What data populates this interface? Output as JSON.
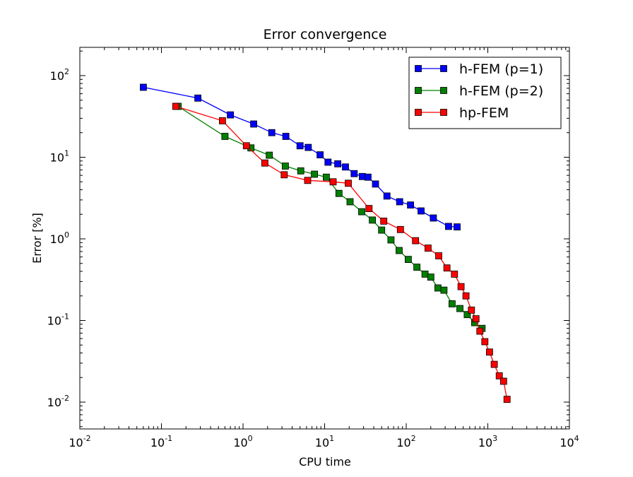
{
  "chart_data": {
    "type": "line",
    "title": "Error convergence",
    "xlabel": "CPU time",
    "ylabel": "Error [%]",
    "xscale": "log",
    "yscale": "log",
    "xlim": [
      0.01,
      10000
    ],
    "ylim": [
      0.005,
      200
    ],
    "x_ticks": [
      {
        "base": "10",
        "exp": "-2"
      },
      {
        "base": "10",
        "exp": "-1"
      },
      {
        "base": "10",
        "exp": "0"
      },
      {
        "base": "10",
        "exp": "1"
      },
      {
        "base": "10",
        "exp": "2"
      },
      {
        "base": "10",
        "exp": "3"
      },
      {
        "base": "10",
        "exp": "4"
      }
    ],
    "y_ticks": [
      {
        "base": "10",
        "exp": "-2"
      },
      {
        "base": "10",
        "exp": "-1"
      },
      {
        "base": "10",
        "exp": "0"
      },
      {
        "base": "10",
        "exp": "1"
      },
      {
        "base": "10",
        "exp": "2"
      }
    ],
    "legend_position": "top-right",
    "grid": false,
    "series": [
      {
        "name": "h-FEM (p=1)",
        "color": "#0000ff",
        "marker": "square",
        "x": [
          0.06,
          0.28,
          0.7,
          1.35,
          2.25,
          3.35,
          5.0,
          6.3,
          8.8,
          11.0,
          14.5,
          18.0,
          23.0,
          29.0,
          34.0,
          42.0,
          58.0,
          83.0,
          113.0,
          152.0,
          215.0,
          330.0,
          420.0
        ],
        "y": [
          72.0,
          53.0,
          33.0,
          25.5,
          20.0,
          18.0,
          13.8,
          13.2,
          10.7,
          8.7,
          8.3,
          7.6,
          6.3,
          5.8,
          5.7,
          4.7,
          3.35,
          2.85,
          2.6,
          2.2,
          1.8,
          1.42,
          1.4
        ]
      },
      {
        "name": "h-FEM (p=2)",
        "color": "#007f00",
        "marker": "square",
        "x": [
          0.16,
          0.6,
          1.25,
          2.1,
          3.3,
          5.1,
          7.5,
          10.5,
          15.0,
          20.5,
          28.5,
          38.5,
          50.0,
          65.0,
          82.0,
          106.0,
          135.0,
          170.0,
          200.0,
          245.0,
          290.0,
          365.0,
          455.0,
          560.0,
          690.0,
          850.0
        ],
        "y": [
          42.0,
          18.0,
          13.0,
          10.6,
          7.8,
          6.8,
          6.2,
          5.7,
          3.6,
          2.85,
          2.15,
          1.7,
          1.28,
          0.97,
          0.72,
          0.56,
          0.45,
          0.37,
          0.34,
          0.25,
          0.235,
          0.16,
          0.14,
          0.118,
          0.094,
          0.08
        ]
      },
      {
        "name": "hp-FEM",
        "color": "#ff0000",
        "marker": "square",
        "x": [
          0.15,
          0.56,
          1.1,
          1.85,
          3.2,
          6.2,
          12.7,
          19.5,
          35.0,
          53.0,
          85.0,
          130.0,
          185.0,
          250.0,
          315.0,
          390.0,
          470.0,
          540.0,
          630.0,
          715.0,
          800.0,
          920.0,
          1050.0,
          1200.0,
          1380.0,
          1560.0,
          1720.0
        ],
        "y": [
          42.0,
          28.0,
          13.8,
          8.5,
          6.1,
          5.2,
          5.0,
          4.8,
          2.35,
          1.65,
          1.3,
          0.95,
          0.77,
          0.62,
          0.44,
          0.37,
          0.26,
          0.2,
          0.134,
          0.105,
          0.074,
          0.055,
          0.041,
          0.029,
          0.021,
          0.018,
          0.0108
        ]
      }
    ]
  }
}
